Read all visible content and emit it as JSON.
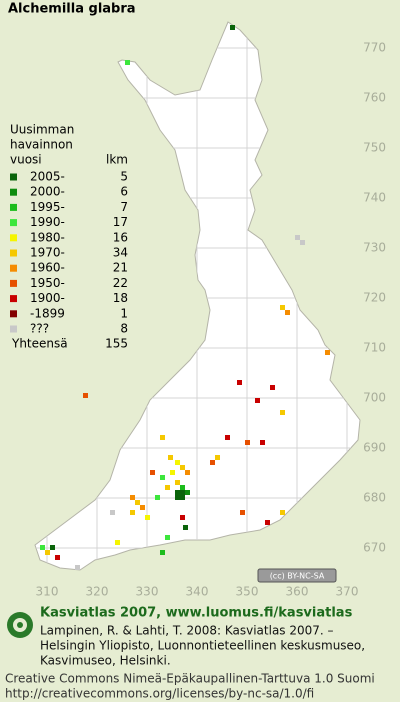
{
  "title": "Alchemilla glabra",
  "legend": {
    "heading": [
      "Uusimman",
      "havainnon"
    ],
    "columns": [
      "vuosi",
      "lkm"
    ],
    "rows": [
      {
        "period": "2005-",
        "count": 5,
        "color": "#0a640a"
      },
      {
        "period": "2000-",
        "count": 6,
        "color": "#0f8c0f"
      },
      {
        "period": "1995-",
        "count": 7,
        "color": "#1cbc1c"
      },
      {
        "period": "1990-",
        "count": 17,
        "color": "#3ce63c"
      },
      {
        "period": "1980-",
        "count": 16,
        "color": "#f5f500"
      },
      {
        "period": "1970-",
        "count": 34,
        "color": "#f5c800"
      },
      {
        "period": "1960-",
        "count": 21,
        "color": "#f58c00"
      },
      {
        "period": "1950-",
        "count": 22,
        "color": "#e65000"
      },
      {
        "period": "1900-",
        "count": 18,
        "color": "#c80000"
      },
      {
        "period": "-1899",
        "count": 1,
        "color": "#820000"
      },
      {
        "period": "???",
        "count": 8,
        "color": "#c8c8c8"
      }
    ],
    "total_label": "Yhteensä",
    "total": 155
  },
  "axes": {
    "y_ticks": [
      770,
      760,
      750,
      740,
      730,
      720,
      710,
      700,
      690,
      680,
      670
    ],
    "x_ticks": [
      310,
      320,
      330,
      340,
      350,
      360,
      370
    ]
  },
  "license_badge": "(cc) BY-NC-SA",
  "footer": {
    "title": "Kasviatlas 2007, www.luomus.fi/kasviatlas",
    "citation": [
      "Lampinen, R. & Lahti, T. 2008: Kasviatlas 2007. –",
      "Helsingin Yliopisto, Luonnontieteellinen keskusmuseo,",
      "Kasvimuseo, Helsinki."
    ],
    "license": [
      "Creative Commons Nimeä-Epäkaupallinen-Tarttuva 1.0 Suomi",
      "http://creativecommons.org/licenses/by-nc-sa/1.0/fi"
    ]
  }
}
